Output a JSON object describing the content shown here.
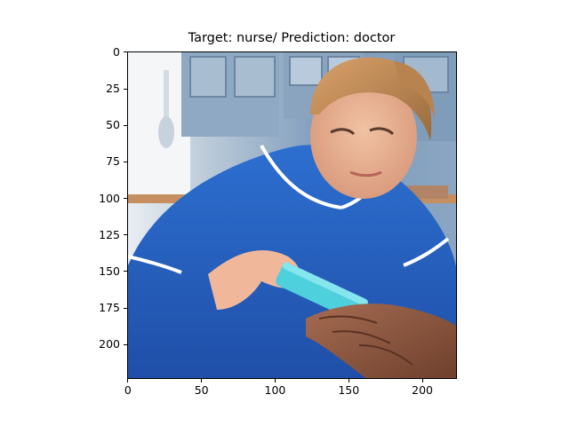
{
  "figure": {
    "title": "Target: nurse/ Prediction: doctor"
  },
  "image": {
    "description_icon": "nurse-photo",
    "width_units": 224,
    "height_units": 224
  },
  "axes": {
    "x_ticks": [
      "0",
      "50",
      "100",
      "150",
      "200"
    ],
    "y_ticks": [
      "0",
      "25",
      "50",
      "75",
      "100",
      "125",
      "150",
      "175",
      "200"
    ]
  }
}
